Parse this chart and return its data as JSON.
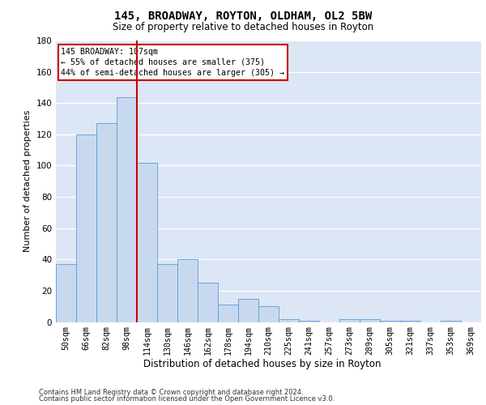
{
  "title": "145, BROADWAY, ROYTON, OLDHAM, OL2 5BW",
  "subtitle": "Size of property relative to detached houses in Royton",
  "xlabel": "Distribution of detached houses by size in Royton",
  "ylabel": "Number of detached properties",
  "categories": [
    "50sqm",
    "66sqm",
    "82sqm",
    "98sqm",
    "114sqm",
    "130sqm",
    "146sqm",
    "162sqm",
    "178sqm",
    "194sqm",
    "210sqm",
    "225sqm",
    "241sqm",
    "257sqm",
    "273sqm",
    "289sqm",
    "305sqm",
    "321sqm",
    "337sqm",
    "353sqm",
    "369sqm"
  ],
  "values": [
    37,
    120,
    127,
    144,
    102,
    37,
    40,
    25,
    11,
    15,
    10,
    2,
    1,
    0,
    2,
    2,
    1,
    1,
    0,
    1,
    0
  ],
  "bar_color": "#c8d9ef",
  "bar_edge_color": "#5b9bd5",
  "red_line_color": "#cc0000",
  "annotation_text": "145 BROADWAY: 107sqm\n← 55% of detached houses are smaller (375)\n44% of semi-detached houses are larger (305) →",
  "annotation_box_color": "#ffffff",
  "annotation_box_edge_color": "#cc0000",
  "annotation_text_color": "#000000",
  "ylim": [
    0,
    180
  ],
  "yticks": [
    0,
    20,
    40,
    60,
    80,
    100,
    120,
    140,
    160,
    180
  ],
  "bg_color": "#dce6f5",
  "grid_color": "#ffffff",
  "footer_line1": "Contains HM Land Registry data © Crown copyright and database right 2024.",
  "footer_line2": "Contains public sector information licensed under the Open Government Licence v3.0."
}
